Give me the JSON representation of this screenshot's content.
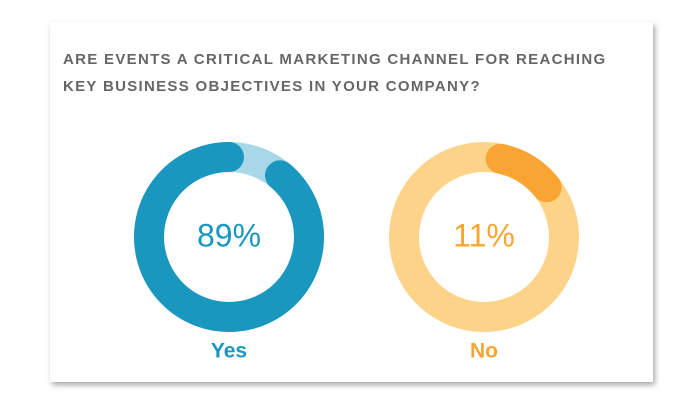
{
  "title": [
    "ARE EVENTS A CRITICAL MARKETING CHANNEL FOR REACHING",
    "KEY BUSINESS OBJECTIVES IN YOUR COMPANY?"
  ],
  "chart_data": [
    {
      "type": "donut",
      "categories": [
        "Yes"
      ],
      "values": [
        89
      ],
      "value_labels": [
        "89%"
      ],
      "color": "#1a97bf",
      "track_color": "#a8d8e8"
    },
    {
      "type": "donut",
      "categories": [
        "No"
      ],
      "values": [
        11
      ],
      "value_labels": [
        "11%"
      ],
      "color": "#f9a533",
      "track_color": "#fdd38a"
    }
  ]
}
